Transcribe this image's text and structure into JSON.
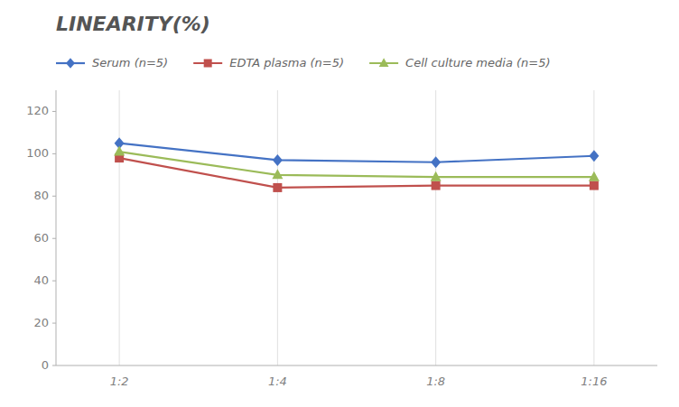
{
  "chart_data": {
    "type": "line",
    "title": "LINEARITY(%)",
    "categories": [
      "1:2",
      "1:4",
      "1:8",
      "1:16"
    ],
    "series": [
      {
        "name": "Serum (n=5)",
        "color": "#4472C4",
        "marker": "diamond",
        "values": [
          105,
          97,
          96,
          99
        ]
      },
      {
        "name": "EDTA plasma (n=5)",
        "color": "#C0504D",
        "marker": "square",
        "values": [
          98,
          84,
          85,
          85
        ]
      },
      {
        "name": "Cell culture media (n=5)",
        "color": "#9BBB59",
        "marker": "triangle",
        "values": [
          101,
          90,
          89,
          89
        ]
      }
    ],
    "ylim": [
      0,
      130
    ],
    "yticks": [
      0,
      20,
      40,
      60,
      80,
      100,
      120
    ],
    "grid": "x",
    "legend": "upper left"
  }
}
